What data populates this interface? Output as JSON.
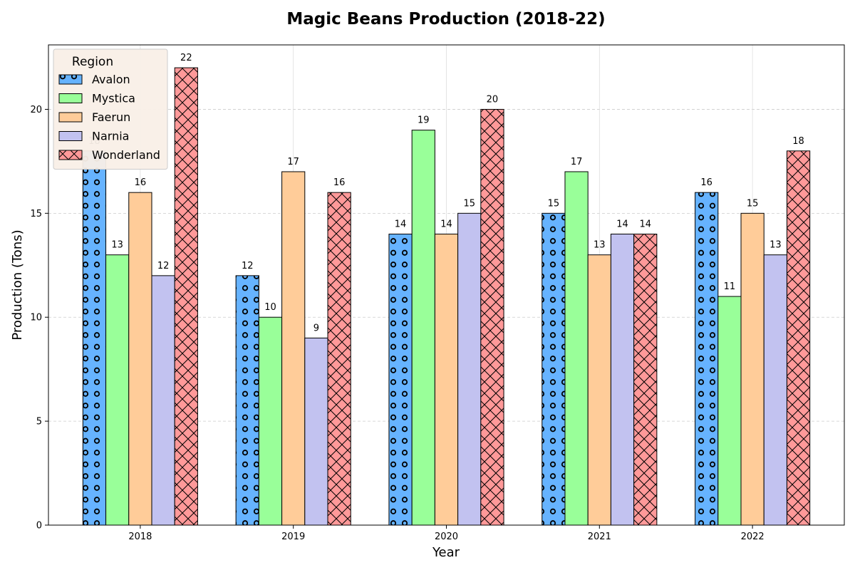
{
  "chart_data": {
    "type": "bar",
    "title": "Magic Beans Production (2018-22)",
    "xlabel": "Year",
    "ylabel": "Production (Tons)",
    "categories": [
      "2018",
      "2019",
      "2020",
      "2021",
      "2022"
    ],
    "ylim": [
      0,
      23.1
    ],
    "yticks": [
      0,
      5,
      10,
      15,
      20
    ],
    "grid": true,
    "legend": {
      "title": "Region",
      "placement": "top-left"
    },
    "series": [
      {
        "name": "Avalon",
        "values": [
          18,
          12,
          14,
          15,
          16
        ],
        "color": "#66b3ff",
        "hatch": "circles"
      },
      {
        "name": "Mystica",
        "values": [
          13,
          10,
          19,
          17,
          11
        ],
        "color": "#99ff99",
        "hatch": "none"
      },
      {
        "name": "Faerun",
        "values": [
          16,
          17,
          14,
          13,
          15
        ],
        "color": "#ffcc99",
        "hatch": "none"
      },
      {
        "name": "Narnia",
        "values": [
          12,
          9,
          15,
          14,
          13
        ],
        "color": "#c2c2f0",
        "hatch": "none"
      },
      {
        "name": "Wonderland",
        "values": [
          22,
          16,
          20,
          14,
          18
        ],
        "color": "#ff9999",
        "hatch": "crosshatch"
      }
    ]
  }
}
